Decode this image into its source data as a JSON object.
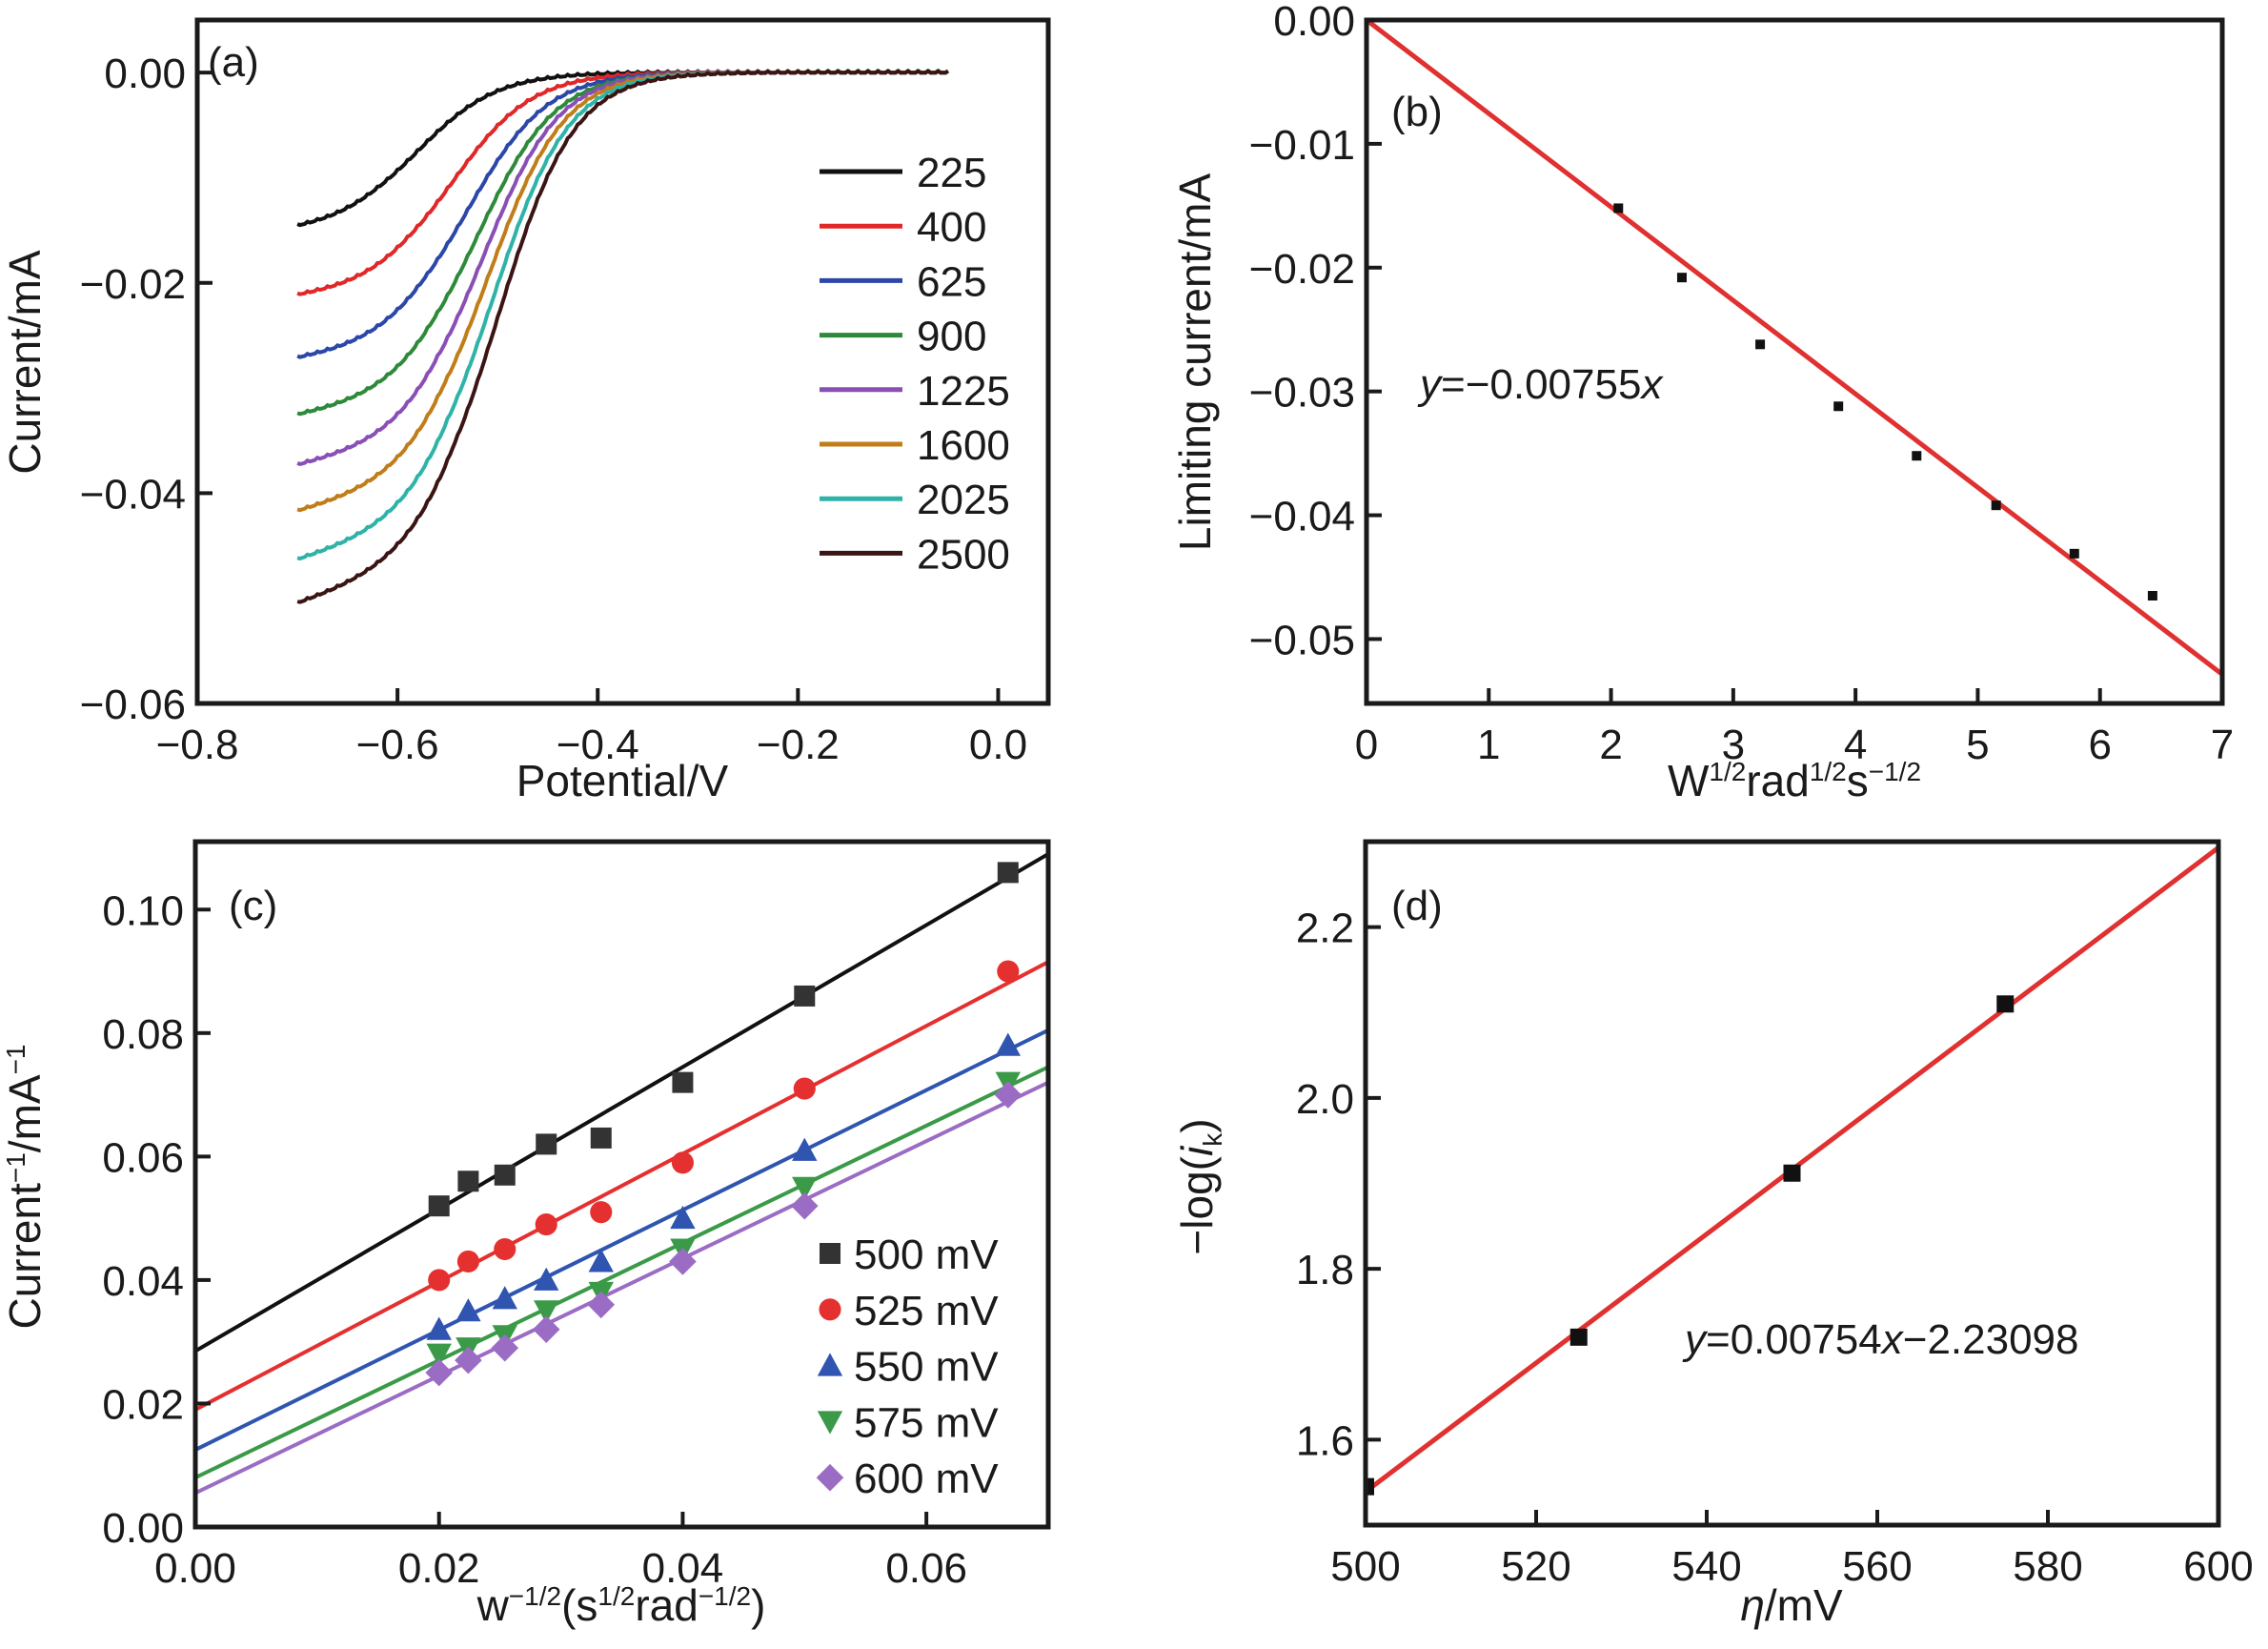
{
  "chart_data": [
    {
      "id": "a",
      "type": "line",
      "panel_label": "(a)",
      "xlabel": "Potential/V",
      "ylabel": "Current/mA",
      "xlim": [
        -0.8,
        0.05
      ],
      "ylim": [
        -0.06,
        0.005
      ],
      "xticks": [
        -0.8,
        -0.6,
        -0.4,
        -0.2,
        0.0
      ],
      "xtick_labels": [
        "−0.8",
        "−0.6",
        "−0.4",
        "−0.2",
        "0.0"
      ],
      "yticks": [
        0.0,
        -0.02,
        -0.04,
        -0.06
      ],
      "ytick_labels": [
        "0.00",
        "−0.02",
        "−0.04",
        "−0.06"
      ],
      "legend_position": "right",
      "x_start": -0.7,
      "x_end": -0.05,
      "series": [
        {
          "name": "225",
          "color": "#111111",
          "limiting": -0.015,
          "half_wave": -0.575,
          "width": 0.04
        },
        {
          "name": "400",
          "color": "#e02828",
          "limiting": -0.0208,
          "half_wave": -0.54,
          "width": 0.04
        },
        {
          "name": "625",
          "color": "#2b47a8",
          "limiting": -0.0262,
          "half_wave": -0.525,
          "width": 0.04
        },
        {
          "name": "900",
          "color": "#2e8a3a",
          "limiting": -0.031,
          "half_wave": -0.515,
          "width": 0.039
        },
        {
          "name": "1225",
          "color": "#8a4fb5",
          "limiting": -0.0352,
          "half_wave": -0.51,
          "width": 0.038
        },
        {
          "name": "1600",
          "color": "#c07d1a",
          "limiting": -0.039,
          "half_wave": -0.505,
          "width": 0.038
        },
        {
          "name": "2025",
          "color": "#2fb3a8",
          "limiting": -0.043,
          "half_wave": -0.5,
          "width": 0.038
        },
        {
          "name": "2500",
          "color": "#3b1414",
          "limiting": -0.0465,
          "half_wave": -0.495,
          "width": 0.038
        }
      ]
    },
    {
      "id": "b",
      "type": "scatter",
      "panel_label": "(b)",
      "xlabel_parts": [
        [
          "W",
          ""
        ],
        [
          "1/2",
          "sup"
        ],
        [
          "rad",
          ""
        ],
        [
          "1/2",
          "sup"
        ],
        [
          "s",
          ""
        ],
        [
          "−1/2",
          "sup"
        ]
      ],
      "ylabel": "Limiting current/mA",
      "xlim": [
        0,
        7
      ],
      "ylim": [
        -0.0552,
        0.0
      ],
      "xticks": [
        0,
        1,
        2,
        3,
        4,
        5,
        6,
        7
      ],
      "xtick_labels": [
        "0",
        "1",
        "2",
        "3",
        "4",
        "5",
        "6",
        "7"
      ],
      "yticks": [
        0.0,
        -0.01,
        -0.02,
        -0.03,
        -0.04,
        -0.05
      ],
      "ytick_labels": [
        "0.00",
        "−0.01",
        "−0.02",
        "−0.03",
        "−0.04",
        "−0.05"
      ],
      "points": {
        "x": [
          2.06,
          2.58,
          3.22,
          3.86,
          4.5,
          5.15,
          5.79,
          6.43
        ],
        "y": [
          -0.0152,
          -0.0208,
          -0.0262,
          -0.0312,
          -0.0352,
          -0.0392,
          -0.0431,
          -0.0465
        ]
      },
      "marker_color": "#111111",
      "fit": {
        "slope": -0.00755,
        "intercept": 0.0,
        "color": "#e03030",
        "x_range": [
          0,
          7
        ]
      },
      "equation": {
        "italic_y": "y",
        "body": "=−0.00755",
        "italic_x": "x"
      }
    },
    {
      "id": "c",
      "type": "scatter",
      "panel_label": "(c)",
      "xlabel_parts": [
        [
          "w",
          ""
        ],
        [
          "−1/2",
          "sup"
        ],
        [
          "(s",
          ""
        ],
        [
          "1/2",
          "sup"
        ],
        [
          "rad",
          ""
        ],
        [
          "−1/2",
          "sup"
        ],
        [
          ")",
          ""
        ]
      ],
      "ylabel_parts": [
        [
          "Current",
          ""
        ],
        [
          "−1",
          "sup"
        ],
        [
          "/mA",
          ""
        ],
        [
          "−1",
          "sup"
        ]
      ],
      "xlim": [
        0,
        0.07
      ],
      "ylim": [
        0,
        0.111
      ],
      "xticks": [
        0.0,
        0.02,
        0.04,
        0.06
      ],
      "xtick_labels": [
        "0.00",
        "0.02",
        "0.04",
        "0.06"
      ],
      "yticks": [
        0.0,
        0.02,
        0.04,
        0.06,
        0.08,
        0.1
      ],
      "ytick_labels": [
        "0.00",
        "0.02",
        "0.04",
        "0.06",
        "0.08",
        "0.10"
      ],
      "legend_position": "bottom-right",
      "x": [
        0.02,
        0.0224,
        0.0254,
        0.0288,
        0.0333,
        0.04,
        0.05,
        0.0667
      ],
      "series": [
        {
          "name": "500 mV",
          "marker": "square",
          "color": "#333333",
          "line_color": "#111111",
          "values": [
            0.052,
            0.056,
            0.057,
            0.062,
            0.063,
            0.072,
            0.086,
            0.106
          ],
          "fit": {
            "intercept": 0.0285,
            "slope": 1.15
          }
        },
        {
          "name": "525 mV",
          "marker": "circle",
          "color": "#e53030",
          "line_color": "#e53030",
          "values": [
            0.04,
            0.043,
            0.045,
            0.049,
            0.051,
            0.059,
            0.071,
            0.09
          ],
          "fit": {
            "intercept": 0.019,
            "slope": 1.036
          }
        },
        {
          "name": "550 mV",
          "marker": "triangle-up",
          "color": "#2f55b0",
          "line_color": "#2f55b0",
          "values": [
            0.032,
            0.035,
            0.037,
            0.04,
            0.043,
            0.05,
            0.061,
            0.078
          ],
          "fit": {
            "intercept": 0.0125,
            "slope": 0.971
          }
        },
        {
          "name": "575 mV",
          "marker": "triangle-down",
          "color": "#3a9a48",
          "line_color": "#3a9a48",
          "values": [
            0.028,
            0.029,
            0.031,
            0.035,
            0.038,
            0.045,
            0.055,
            0.072
          ],
          "fit": {
            "intercept": 0.008,
            "slope": 0.95
          }
        },
        {
          "name": "600 mV",
          "marker": "diamond",
          "color": "#9b6cc4",
          "line_color": "#9b6cc4",
          "values": [
            0.025,
            0.027,
            0.029,
            0.032,
            0.036,
            0.043,
            0.052,
            0.07
          ],
          "fit": {
            "intercept": 0.0055,
            "slope": 0.95
          }
        }
      ]
    },
    {
      "id": "d",
      "type": "scatter",
      "panel_label": "(d)",
      "xlabel_parts": [
        [
          "η",
          "italic"
        ],
        [
          "/mV",
          ""
        ]
      ],
      "ylabel_parts": [
        [
          "−log(",
          ""
        ],
        [
          "i",
          "italic"
        ],
        [
          "k",
          "sub"
        ],
        [
          ")",
          ""
        ]
      ],
      "xlim": [
        500,
        600
      ],
      "ylim": [
        1.5,
        2.3
      ],
      "xticks": [
        500,
        520,
        540,
        560,
        580,
        600
      ],
      "xtick_labels": [
        "500",
        "520",
        "540",
        "560",
        "580",
        "600"
      ],
      "yticks": [
        1.6,
        1.8,
        2.0,
        2.2
      ],
      "ytick_labels": [
        "1.6",
        "1.8",
        "2.0",
        "2.2"
      ],
      "points": {
        "x": [
          500,
          525,
          550,
          575
        ],
        "y": [
          1.545,
          1.72,
          1.912,
          2.11
        ]
      },
      "marker_color": "#111111",
      "fit": {
        "slope": 0.00754,
        "intercept": -2.23098,
        "color": "#e03030",
        "x_range": [
          500,
          600
        ]
      },
      "equation": {
        "italic_y": "y",
        "body": "=0.00754",
        "italic_x": "x",
        "tail": "−2.23098"
      }
    }
  ]
}
